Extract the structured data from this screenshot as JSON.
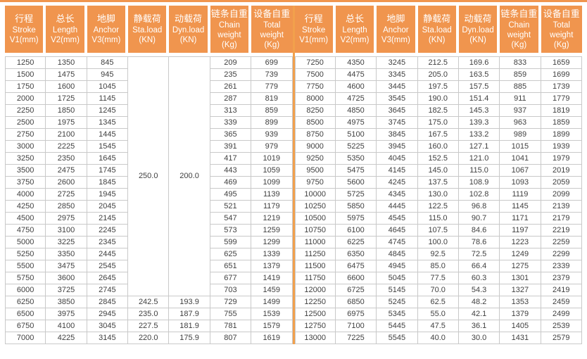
{
  "colors": {
    "accent_orange": "#F0954E",
    "divider_orange": "#F2A04C",
    "cell_border": "#C9C9C9",
    "cell_text": "#3F3F3F",
    "header_text": "#FFFFFF"
  },
  "table": {
    "columns": [
      {
        "key": "stroke",
        "lines": [
          "行程",
          "Stroke",
          "V1(mm)"
        ]
      },
      {
        "key": "length",
        "lines": [
          "总长",
          "Length",
          "V2(mm)"
        ]
      },
      {
        "key": "anchor",
        "lines": [
          "地脚",
          "Anchor",
          "V3(mm)"
        ]
      },
      {
        "key": "sta-load",
        "lines": [
          "静载荷",
          "Sta.load",
          "(KN)"
        ]
      },
      {
        "key": "dyn-load",
        "lines": [
          "动载荷",
          "Dyn.load",
          "(KN)"
        ]
      },
      {
        "key": "chain-weight",
        "lines": [
          "链条自重",
          "Chain",
          "weight",
          "(Kg)"
        ]
      },
      {
        "key": "total-weight",
        "lines": [
          "设备自重",
          "Total",
          "weight",
          "(Kg)"
        ]
      }
    ],
    "left": {
      "merged": {
        "sta": "250.0",
        "dyn": "200.0",
        "span": 20
      },
      "rows": [
        [
          "1250",
          "1350",
          "845",
          "",
          "",
          "209",
          "699"
        ],
        [
          "1500",
          "1475",
          "945",
          "",
          "",
          "235",
          "739"
        ],
        [
          "1750",
          "1600",
          "1045",
          "",
          "",
          "261",
          "779"
        ],
        [
          "2000",
          "1725",
          "1145",
          "",
          "",
          "287",
          "819"
        ],
        [
          "2250",
          "1850",
          "1245",
          "",
          "",
          "313",
          "859"
        ],
        [
          "2500",
          "1975",
          "1345",
          "",
          "",
          "339",
          "899"
        ],
        [
          "2750",
          "2100",
          "1445",
          "",
          "",
          "365",
          "939"
        ],
        [
          "3000",
          "2225",
          "1545",
          "",
          "",
          "391",
          "979"
        ],
        [
          "3250",
          "2350",
          "1645",
          "",
          "",
          "417",
          "1019"
        ],
        [
          "3500",
          "2475",
          "1745",
          "",
          "",
          "443",
          "1059"
        ],
        [
          "3750",
          "2600",
          "1845",
          "",
          "",
          "469",
          "1099"
        ],
        [
          "4000",
          "2725",
          "1945",
          "",
          "",
          "495",
          "1139"
        ],
        [
          "4250",
          "2850",
          "2045",
          "",
          "",
          "521",
          "1179"
        ],
        [
          "4500",
          "2975",
          "2145",
          "",
          "",
          "547",
          "1219"
        ],
        [
          "4750",
          "3100",
          "2245",
          "",
          "",
          "573",
          "1259"
        ],
        [
          "5000",
          "3225",
          "2345",
          "",
          "",
          "599",
          "1299"
        ],
        [
          "5250",
          "3350",
          "2445",
          "",
          "",
          "625",
          "1339"
        ],
        [
          "5500",
          "3475",
          "2545",
          "",
          "",
          "651",
          "1379"
        ],
        [
          "5750",
          "3600",
          "2645",
          "",
          "",
          "677",
          "1419"
        ],
        [
          "6000",
          "3725",
          "2745",
          "",
          "",
          "703",
          "1459"
        ],
        [
          "6250",
          "3850",
          "2845",
          "242.5",
          "193.9",
          "729",
          "1499"
        ],
        [
          "6500",
          "3975",
          "2945",
          "235.0",
          "187.9",
          "755",
          "1539"
        ],
        [
          "6750",
          "4100",
          "3045",
          "227.5",
          "181.9",
          "781",
          "1579"
        ],
        [
          "7000",
          "4225",
          "3145",
          "220.0",
          "175.9",
          "807",
          "1619"
        ]
      ]
    },
    "right": {
      "rows": [
        [
          "7250",
          "4350",
          "3245",
          "212.5",
          "169.6",
          "833",
          "1659"
        ],
        [
          "7500",
          "4475",
          "3345",
          "205.0",
          "163.5",
          "859",
          "1699"
        ],
        [
          "7750",
          "4600",
          "3445",
          "197.5",
          "157.5",
          "885",
          "1739"
        ],
        [
          "8000",
          "4725",
          "3545",
          "190.0",
          "151.4",
          "911",
          "1779"
        ],
        [
          "8250",
          "4850",
          "3645",
          "182.5",
          "145.3",
          "937",
          "1819"
        ],
        [
          "8500",
          "4975",
          "3745",
          "175.0",
          "139.3",
          "963",
          "1859"
        ],
        [
          "8750",
          "5100",
          "3845",
          "167.5",
          "133.2",
          "989",
          "1899"
        ],
        [
          "9000",
          "5225",
          "3945",
          "160.0",
          "127.1",
          "1015",
          "1939"
        ],
        [
          "9250",
          "5350",
          "4045",
          "152.5",
          "121.0",
          "1041",
          "1979"
        ],
        [
          "9500",
          "5475",
          "4145",
          "145.0",
          "115.0",
          "1067",
          "2019"
        ],
        [
          "9750",
          "5600",
          "4245",
          "137.5",
          "108.9",
          "1093",
          "2059"
        ],
        [
          "10000",
          "5725",
          "4345",
          "130.0",
          "102.8",
          "1119",
          "2099"
        ],
        [
          "10250",
          "5850",
          "4445",
          "122.5",
          "96.8",
          "1145",
          "2139"
        ],
        [
          "10500",
          "5975",
          "4545",
          "115.0",
          "90.7",
          "1171",
          "2179"
        ],
        [
          "10750",
          "6100",
          "4645",
          "107.5",
          "84.6",
          "1197",
          "2219"
        ],
        [
          "11000",
          "6225",
          "4745",
          "100.0",
          "78.6",
          "1223",
          "2259"
        ],
        [
          "11250",
          "6350",
          "4845",
          "92.5",
          "72.5",
          "1249",
          "2299"
        ],
        [
          "11500",
          "6475",
          "4945",
          "85.0",
          "66.4",
          "1275",
          "2339"
        ],
        [
          "11750",
          "6600",
          "5045",
          "77.5",
          "60.3",
          "1301",
          "2379"
        ],
        [
          "12000",
          "6725",
          "5145",
          "70.0",
          "54.3",
          "1327",
          "2419"
        ],
        [
          "12250",
          "6850",
          "5245",
          "62.5",
          "48.2",
          "1353",
          "2459"
        ],
        [
          "12500",
          "6975",
          "5345",
          "55.0",
          "42.1",
          "1379",
          "2499"
        ],
        [
          "12750",
          "7100",
          "5445",
          "47.5",
          "36.1",
          "1405",
          "2539"
        ],
        [
          "13000",
          "7225",
          "5545",
          "40.0",
          "30.0",
          "1431",
          "2579"
        ]
      ]
    }
  }
}
